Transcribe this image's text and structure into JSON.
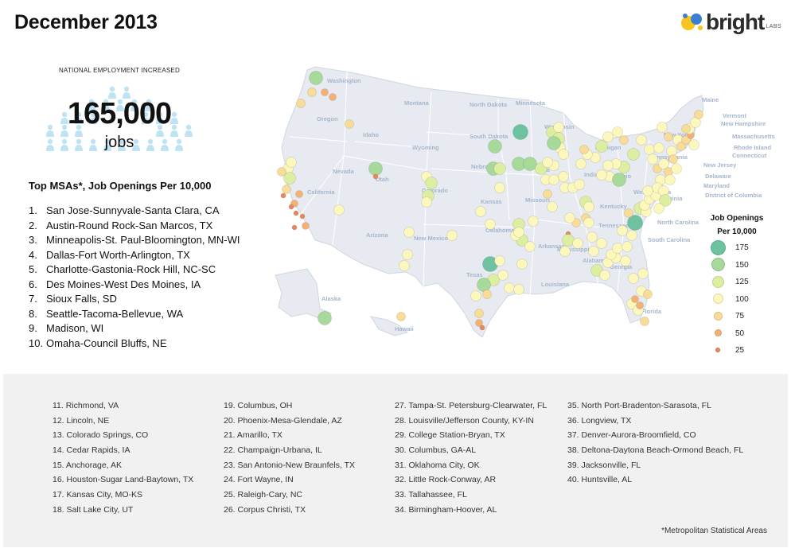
{
  "title": "December 2013",
  "logo": {
    "word": "bright",
    "sub": "LABS"
  },
  "headline": {
    "label": "NATIONAL EMPLOYMENT INCREASED",
    "value": "165,000",
    "unit": "jobs"
  },
  "top_heading": "Top MSAs*, Job Openings Per 10,000",
  "top_msas": [
    {
      "rank": "1.",
      "name": "San Jose-Sunnyvale-Santa Clara, CA"
    },
    {
      "rank": "2.",
      "name": "Austin-Round Rock-San Marcos, TX"
    },
    {
      "rank": "3.",
      "name": "Minneapolis-St. Paul-Bloomington, MN-WI"
    },
    {
      "rank": "4.",
      "name": "Dallas-Fort Worth-Arlington, TX"
    },
    {
      "rank": "5.",
      "name": "Charlotte-Gastonia-Rock Hill, NC-SC"
    },
    {
      "rank": "6.",
      "name": "Des Moines-West Des Moines, IA"
    },
    {
      "rank": "7.",
      "name": "Sioux Falls, SD"
    },
    {
      "rank": "8.",
      "name": "Seattle-Tacoma-Bellevue, WA"
    },
    {
      "rank": "9.",
      "name": "Madison, WI"
    },
    {
      "rank": "10.",
      "name": "Omaha-Council Bluffs, NE"
    }
  ],
  "state_labels": [
    "Washington",
    "Oregon",
    "Idaho",
    "Montana",
    "Wyoming",
    "Nevada",
    "Utah",
    "California",
    "Colorado",
    "Arizona",
    "New Mexico",
    "North Dakota",
    "South Dakota",
    "Nebraska",
    "Kansas",
    "Oklahoma",
    "Texas",
    "Minnesota",
    "Iowa",
    "Missouri",
    "Arkansas",
    "Louisiana",
    "Wisconsin",
    "Illinois",
    "Michigan",
    "Indiana",
    "Ohio",
    "Kentucky",
    "Tennessee",
    "Mississippi",
    "Alabama",
    "Georgia",
    "Florida",
    "South Carolina",
    "North Carolina",
    "Virginia",
    "West Virginia",
    "Pennsylvania",
    "New York",
    "Maine",
    "Vermont",
    "New Hampshire",
    "Massachusetts",
    "Rhode Island",
    "Connecticut",
    "New Jersey",
    "Delaware",
    "Maryland",
    "District of Columbia",
    "Alaska",
    "Hawaii"
  ],
  "legend": {
    "title_line1": "Job Openings",
    "title_line2": "Per 10,000",
    "items": [
      {
        "label": "175",
        "color": "#6dc2a0"
      },
      {
        "label": "150",
        "color": "#a6d99a"
      },
      {
        "label": "125",
        "color": "#dcee9f"
      },
      {
        "label": "100",
        "color": "#fbf7bd"
      },
      {
        "label": "75",
        "color": "#f9dc97"
      },
      {
        "label": "50",
        "color": "#f4b177"
      },
      {
        "label": "25",
        "color": "#e98759"
      }
    ]
  },
  "more_msas": [
    [
      "11. Richmond, VA",
      "12. Lincoln, NE",
      "13. Colorado Springs, CO",
      "14. Cedar Rapids, IA",
      "15. Anchorage, AK",
      "16. Houston-Sugar Land-Baytown, TX",
      "17. Kansas City, MO-KS",
      "18. Salt Lake City, UT"
    ],
    [
      "19. Columbus, OH",
      "20. Phoenix-Mesa-Glendale, AZ",
      "21. Amarillo, TX",
      "22. Champaign-Urbana, IL",
      "23. San Antonio-New Braunfels, TX",
      "24. Fort Wayne, IN",
      "25. Raleigh-Cary, NC",
      "26. Corpus Christi, TX"
    ],
    [
      "27. Tampa-St. Petersburg-Clearwater, FL",
      "28. Louisville/Jefferson County, KY-IN",
      "29. College Station-Bryan, TX",
      "30. Columbus, GA-AL",
      "31. Oklahoma City, OK",
      "32. Little Rock-Conway, AR",
      "33. Tallahassee, FL",
      "34. Birmingham-Hoover, AL"
    ],
    [
      "35. North Port-Bradenton-Sarasota, FL",
      "36. Longview, TX",
      "37. Denver-Aurora-Broomfield, CO",
      "38. Deltona-Daytona Beach-Ormond Beach, FL",
      "39. Jacksonville, FL",
      "40. Huntsville, AL"
    ]
  ],
  "footnote": "*Metropolitan Statistical Areas"
}
